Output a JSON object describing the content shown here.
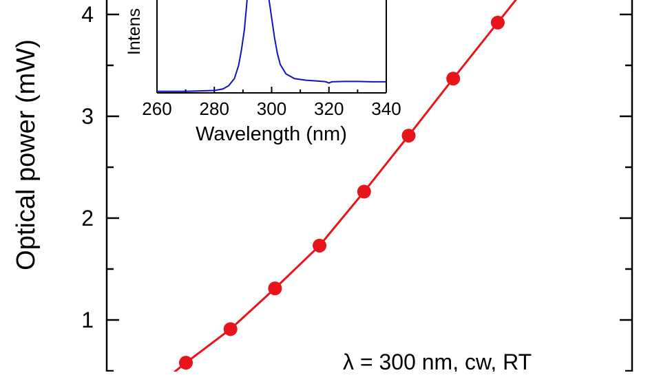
{
  "chart_data": [
    {
      "id": "main",
      "type": "line",
      "ylabel": "Optical power (mW)",
      "annotation": "λ = 300 nm, cw, RT",
      "ylim": [
        0.5,
        4.2
      ],
      "yticks": [
        1,
        2,
        3,
        4
      ],
      "series": [
        {
          "color": "#e8141b",
          "marker": "circle",
          "points": [
            [
              0.0,
              0.58
            ],
            [
              1.0,
              0.91
            ],
            [
              2.0,
              1.31
            ],
            [
              3.0,
              1.73
            ],
            [
              4.0,
              2.26
            ],
            [
              5.0,
              2.81
            ],
            [
              6.0,
              3.37
            ],
            [
              7.0,
              3.92
            ]
          ]
        }
      ]
    },
    {
      "id": "inset",
      "type": "line",
      "xlabel": "Wavelength (nm)",
      "ylabel": "Intens",
      "xlim": [
        260,
        340
      ],
      "xticks": [
        260,
        280,
        300,
        320,
        340
      ],
      "series": [
        {
          "color": "#1010c0",
          "points": [
            [
              260,
              0.02
            ],
            [
              265,
              0.02
            ],
            [
              270,
              0.02
            ],
            [
              275,
              0.025
            ],
            [
              280,
              0.03
            ],
            [
              283,
              0.05
            ],
            [
              285,
              0.09
            ],
            [
              287,
              0.18
            ],
            [
              288.5,
              0.35
            ],
            [
              289.5,
              0.55
            ],
            [
              290.5,
              0.8
            ],
            [
              291.5,
              1.2
            ],
            [
              299,
              1.2
            ],
            [
              300,
              0.95
            ],
            [
              301,
              0.7
            ],
            [
              302,
              0.5
            ],
            [
              303,
              0.36
            ],
            [
              305,
              0.24
            ],
            [
              308,
              0.18
            ],
            [
              312,
              0.16
            ],
            [
              316,
              0.15
            ],
            [
              318,
              0.145
            ],
            [
              319,
              0.14
            ],
            [
              320,
              0.125
            ],
            [
              321,
              0.14
            ],
            [
              325,
              0.145
            ],
            [
              330,
              0.145
            ],
            [
              335,
              0.14
            ],
            [
              340,
              0.14
            ]
          ]
        }
      ]
    }
  ]
}
